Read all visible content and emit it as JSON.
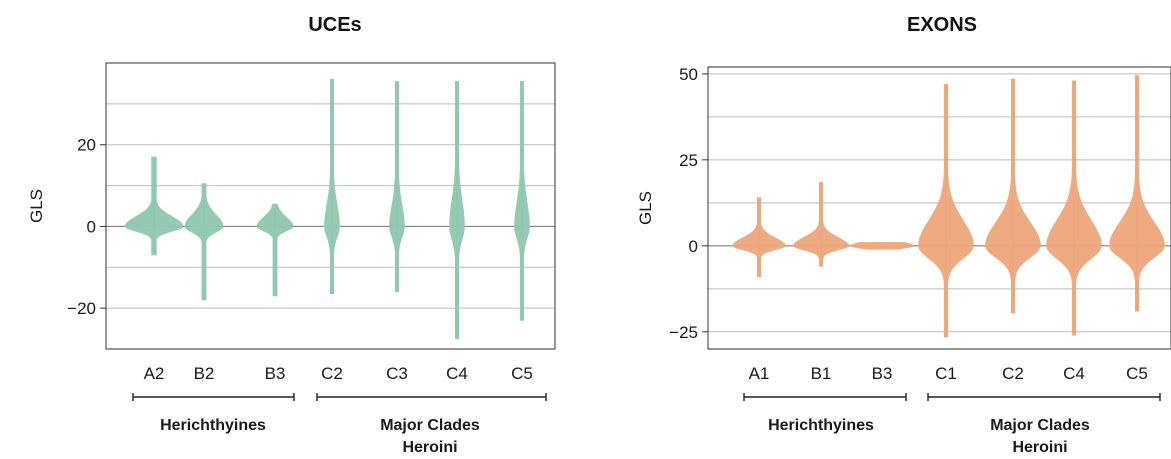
{
  "titles": {
    "left": "UCEs",
    "right": "EXONS"
  },
  "chart_data": [
    {
      "type": "violin",
      "title": "UCEs",
      "ylabel": "GLS",
      "ylim": [
        -30,
        40
      ],
      "yticks": [
        -20,
        0,
        20
      ],
      "ytick_labels": [
        "−20",
        "0",
        "20"
      ],
      "gridlines": [
        -30,
        -20,
        -10,
        0,
        10,
        20,
        30,
        40
      ],
      "grid": true,
      "color": "#8fc8ad",
      "categories": [
        "A2",
        "B2",
        "B3",
        "C2",
        "C3",
        "C4",
        "C5"
      ],
      "groups": [
        {
          "label": "Herichthyines",
          "categories": [
            "A2",
            "B2",
            "B3"
          ]
        },
        {
          "label_line1": "Major Clades",
          "label_line2": "Heroini",
          "categories": [
            "C2",
            "C3",
            "C4",
            "C5"
          ]
        }
      ],
      "series": [
        {
          "category": "A2",
          "min": -7,
          "max": 17,
          "median": 0,
          "max_density_halfwidth": 0.55
        },
        {
          "category": "B2",
          "min": -18,
          "max": 10.5,
          "median": 0,
          "max_density_halfwidth": 0.35
        },
        {
          "category": "B3",
          "min": -17,
          "max": 5.5,
          "median": 0,
          "max_density_halfwidth": 0.33
        },
        {
          "category": "C2",
          "min": -16.5,
          "max": 36,
          "median": 0,
          "max_density_halfwidth": 0.12
        },
        {
          "category": "C3",
          "min": -16,
          "max": 35.5,
          "median": 0,
          "max_density_halfwidth": 0.12
        },
        {
          "category": "C4",
          "min": -27.5,
          "max": 35.5,
          "median": 0,
          "max_density_halfwidth": 0.12
        },
        {
          "category": "C5",
          "min": -23,
          "max": 35.5,
          "median": 0,
          "max_density_halfwidth": 0.12
        }
      ]
    },
    {
      "type": "violin",
      "title": "EXONS",
      "ylabel": "GLS",
      "ylim": [
        -30,
        52
      ],
      "yticks": [
        -25,
        0,
        25,
        50
      ],
      "ytick_labels": [
        "−25",
        "0",
        "25",
        "50"
      ],
      "gridlines": [
        -25,
        -12.5,
        0,
        12.5,
        25,
        37.5,
        50
      ],
      "grid": true,
      "color": "#eea77b",
      "categories": [
        "A1",
        "B1",
        "B3",
        "C1",
        "C2",
        "C4",
        "C5"
      ],
      "groups": [
        {
          "label": "Herichthyines",
          "categories": [
            "A1",
            "B1",
            "B3"
          ]
        },
        {
          "label_line1": "Major Clades",
          "label_line2": "Heroini",
          "categories": [
            "C1",
            "C2",
            "C4",
            "C5"
          ]
        }
      ],
      "series": [
        {
          "category": "A1",
          "min": -9,
          "max": 14,
          "median": 0,
          "max_density_halfwidth": 0.4
        },
        {
          "category": "B1",
          "min": -6,
          "max": 18.5,
          "median": 0,
          "max_density_halfwidth": 0.42
        },
        {
          "category": "B3",
          "min": -1,
          "max": 1,
          "median": 0,
          "max_density_halfwidth": 0.48
        },
        {
          "category": "C1",
          "min": -26.5,
          "max": 47,
          "median": 0,
          "max_density_halfwidth": 0.42
        },
        {
          "category": "C2",
          "min": -19.5,
          "max": 48.5,
          "median": 0,
          "max_density_halfwidth": 0.42
        },
        {
          "category": "C4",
          "min": -26,
          "max": 48,
          "median": 0,
          "max_density_halfwidth": 0.42
        },
        {
          "category": "C5",
          "min": -19,
          "max": 49.5,
          "median": 0,
          "max_density_halfwidth": 0.42
        }
      ]
    }
  ]
}
